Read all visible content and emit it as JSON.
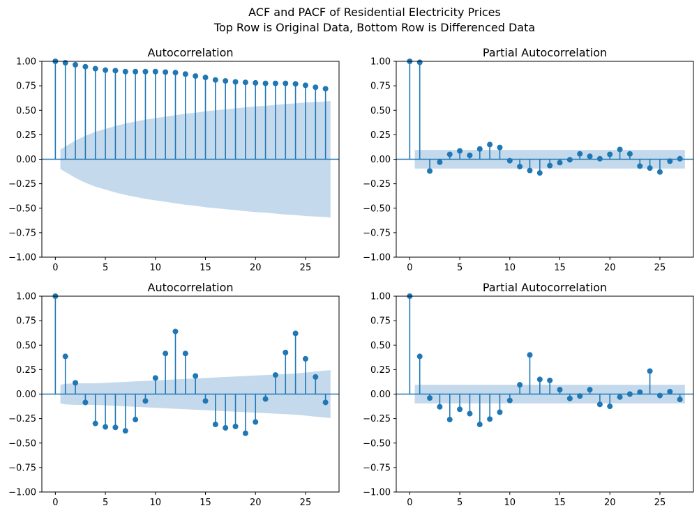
{
  "figure": {
    "title_line1": "ACF and PACF of Residential Electricity Prices",
    "title_line2": "Top Row is Original Data, Bottom Row is Differenced Data"
  },
  "style": {
    "stem_color": "#1f77b4",
    "band_color": "#c4daec",
    "zero_line_color": "#1f77b4"
  },
  "chart_data": [
    {
      "type": "stem",
      "title": "Autocorrelation",
      "xlim": [
        -1.35,
        28.35
      ],
      "ylim": [
        -1.0,
        1.0
      ],
      "xticks": [
        0,
        5,
        10,
        15,
        20,
        25
      ],
      "yticks": [
        -1.0,
        -0.75,
        -0.5,
        -0.25,
        0.0,
        0.25,
        0.5,
        0.75,
        1.0
      ],
      "ytick_labels": [
        "−1.00",
        "−0.75",
        "−0.50",
        "−0.25",
        "0.00",
        "0.25",
        "0.50",
        "0.75",
        "1.00"
      ],
      "lags": [
        0,
        1,
        2,
        3,
        4,
        5,
        6,
        7,
        8,
        9,
        10,
        11,
        12,
        13,
        14,
        15,
        16,
        17,
        18,
        19,
        20,
        21,
        22,
        23,
        24,
        25,
        26,
        27
      ],
      "values": [
        1.0,
        0.985,
        0.965,
        0.945,
        0.925,
        0.91,
        0.905,
        0.895,
        0.895,
        0.895,
        0.895,
        0.89,
        0.885,
        0.87,
        0.85,
        0.835,
        0.81,
        0.8,
        0.79,
        0.785,
        0.78,
        0.775,
        0.775,
        0.775,
        0.77,
        0.755,
        0.735,
        0.72
      ],
      "band_x": [
        0.5,
        1,
        2,
        3,
        4,
        5,
        6,
        7,
        8,
        9,
        10,
        11,
        12,
        13,
        14,
        15,
        16,
        17,
        18,
        19,
        20,
        21,
        22,
        23,
        24,
        25,
        26,
        27,
        27.5
      ],
      "band_upper": [
        0.1,
        0.13,
        0.19,
        0.24,
        0.28,
        0.31,
        0.34,
        0.365,
        0.385,
        0.405,
        0.42,
        0.435,
        0.45,
        0.465,
        0.475,
        0.49,
        0.5,
        0.51,
        0.52,
        0.53,
        0.54,
        0.545,
        0.555,
        0.565,
        0.57,
        0.58,
        0.585,
        0.59,
        0.595
      ]
    },
    {
      "type": "stem",
      "title": "Partial Autocorrelation",
      "xlim": [
        -1.35,
        28.35
      ],
      "ylim": [
        -1.0,
        1.0
      ],
      "xticks": [
        0,
        5,
        10,
        15,
        20,
        25
      ],
      "yticks": [
        -1.0,
        -0.75,
        -0.5,
        -0.25,
        0.0,
        0.25,
        0.5,
        0.75,
        1.0
      ],
      "ytick_labels": [
        "−1.00",
        "−0.75",
        "−0.50",
        "−0.25",
        "0.00",
        "0.25",
        "0.50",
        "0.75",
        "1.00"
      ],
      "lags": [
        0,
        1,
        2,
        3,
        4,
        5,
        6,
        7,
        8,
        9,
        10,
        11,
        12,
        13,
        14,
        15,
        16,
        17,
        18,
        19,
        20,
        21,
        22,
        23,
        24,
        25,
        26,
        27
      ],
      "values": [
        1.0,
        0.99,
        -0.12,
        -0.03,
        0.05,
        0.085,
        0.04,
        0.105,
        0.15,
        0.12,
        -0.015,
        -0.075,
        -0.115,
        -0.14,
        -0.065,
        -0.035,
        -0.005,
        0.055,
        0.03,
        0.005,
        0.05,
        0.1,
        0.055,
        -0.07,
        -0.09,
        -0.13,
        -0.02,
        0.005
      ],
      "band_x": [
        0.5,
        27.5
      ],
      "band_upper": [
        0.095,
        0.095
      ]
    },
    {
      "type": "stem",
      "title": "Autocorrelation",
      "xlim": [
        -1.35,
        28.35
      ],
      "ylim": [
        -1.0,
        1.0
      ],
      "xticks": [
        0,
        5,
        10,
        15,
        20,
        25
      ],
      "yticks": [
        -1.0,
        -0.75,
        -0.5,
        -0.25,
        0.0,
        0.25,
        0.5,
        0.75,
        1.0
      ],
      "ytick_labels": [
        "−1.00",
        "−0.75",
        "−0.50",
        "−0.25",
        "0.00",
        "0.25",
        "0.50",
        "0.75",
        "1.00"
      ],
      "lags": [
        0,
        1,
        2,
        3,
        4,
        5,
        6,
        7,
        8,
        9,
        10,
        11,
        12,
        13,
        14,
        15,
        16,
        17,
        18,
        19,
        20,
        21,
        22,
        23,
        24,
        25,
        26,
        27
      ],
      "values": [
        1.0,
        0.385,
        0.115,
        -0.085,
        -0.3,
        -0.335,
        -0.34,
        -0.375,
        -0.26,
        -0.07,
        0.165,
        0.415,
        0.64,
        0.415,
        0.185,
        -0.07,
        -0.31,
        -0.345,
        -0.33,
        -0.4,
        -0.285,
        -0.05,
        0.195,
        0.425,
        0.62,
        0.36,
        0.175,
        -0.085
      ],
      "band_x": [
        0.5,
        1,
        2,
        3,
        4,
        5,
        6,
        7,
        8,
        9,
        10,
        11,
        12,
        13,
        14,
        15,
        16,
        17,
        18,
        19,
        20,
        21,
        22,
        23,
        24,
        25,
        26,
        27,
        27.5
      ],
      "band_upper": [
        0.095,
        0.105,
        0.11,
        0.11,
        0.11,
        0.115,
        0.12,
        0.125,
        0.13,
        0.135,
        0.14,
        0.145,
        0.15,
        0.155,
        0.16,
        0.165,
        0.17,
        0.175,
        0.18,
        0.185,
        0.19,
        0.195,
        0.2,
        0.205,
        0.21,
        0.22,
        0.23,
        0.24,
        0.245
      ]
    },
    {
      "type": "stem",
      "title": "Partial Autocorrelation",
      "xlim": [
        -1.35,
        28.35
      ],
      "ylim": [
        -1.0,
        1.0
      ],
      "xticks": [
        0,
        5,
        10,
        15,
        20,
        25
      ],
      "yticks": [
        -1.0,
        -0.75,
        -0.5,
        -0.25,
        0.0,
        0.25,
        0.5,
        0.75,
        1.0
      ],
      "ytick_labels": [
        "−1.00",
        "−0.75",
        "−0.50",
        "−0.25",
        "0.00",
        "0.25",
        "0.50",
        "0.75",
        "1.00"
      ],
      "lags": [
        0,
        1,
        2,
        3,
        4,
        5,
        6,
        7,
        8,
        9,
        10,
        11,
        12,
        13,
        14,
        15,
        16,
        17,
        18,
        19,
        20,
        21,
        22,
        23,
        24,
        25,
        26,
        27
      ],
      "values": [
        1.0,
        0.385,
        -0.04,
        -0.13,
        -0.26,
        -0.155,
        -0.2,
        -0.31,
        -0.255,
        -0.185,
        -0.065,
        0.095,
        0.4,
        0.15,
        0.14,
        0.045,
        -0.045,
        -0.02,
        0.045,
        -0.105,
        -0.125,
        -0.03,
        0.0,
        0.02,
        0.235,
        -0.015,
        0.025,
        -0.055
      ],
      "band_x": [
        0.5,
        27.5
      ],
      "band_upper": [
        0.095,
        0.095
      ]
    }
  ]
}
